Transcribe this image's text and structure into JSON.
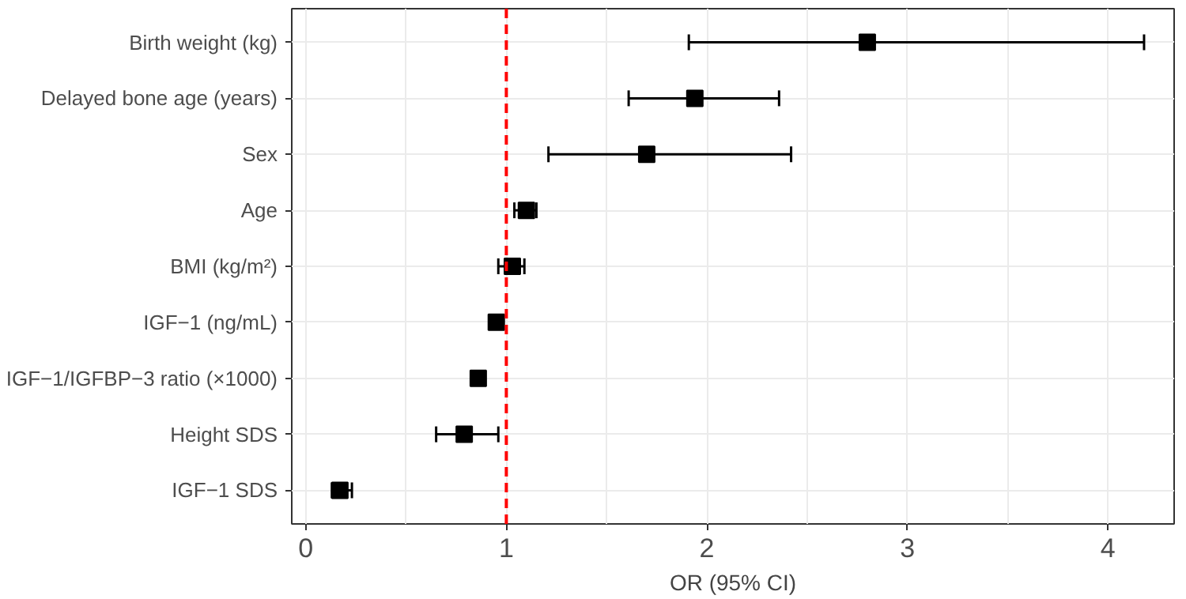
{
  "chart_data": {
    "type": "scatter",
    "orientation": "horizontal",
    "xlabel": "OR (95% CI)",
    "categories": [
      "Birth weight (kg)",
      "Delayed bone age (years)",
      "Sex",
      "Age",
      "BMI (kg/m²)",
      "IGF−1 (ng/mL)",
      "IGF−1/IGFBP−3 ratio (×1000)",
      "Height SDS",
      "IGF−1 SDS"
    ],
    "values": [
      2.8,
      1.94,
      1.7,
      1.1,
      1.03,
      0.95,
      0.86,
      0.79,
      0.17
    ],
    "errors": [
      [
        1.91,
        4.18
      ],
      [
        1.61,
        2.36
      ],
      [
        1.21,
        2.42
      ],
      [
        1.04,
        1.15
      ],
      [
        0.96,
        1.09
      ],
      null,
      null,
      [
        0.65,
        0.96
      ],
      [
        0.13,
        0.23
      ]
    ],
    "color": "#000000",
    "marker": "square",
    "grid": true,
    "xlim": [
      -0.07,
      4.33
    ],
    "xticks": [
      0,
      1,
      2,
      3,
      4
    ],
    "ref_lines": [
      {
        "axis": "x",
        "value": 1,
        "color": "#ff0000",
        "line_style": "dashed"
      }
    ]
  }
}
